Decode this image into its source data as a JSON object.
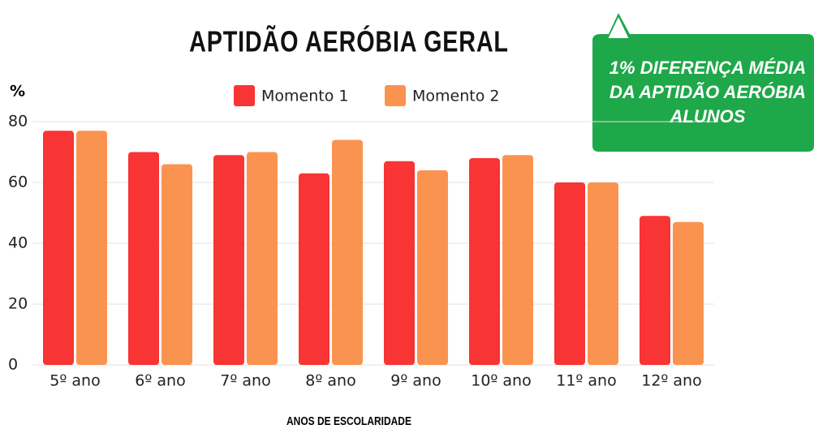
{
  "chart_data": {
    "type": "bar",
    "title": "APTIDÃO AERÓBIA GERAL",
    "y_label": "%",
    "x_label": "ANOS DE ESCOLARIDADE",
    "annotation": [
      "1% DIFERENÇA MÉDIA",
      "DA APTIDÃO AERÓBIA",
      "ALUNOS"
    ],
    "categories": [
      "5º ano",
      "6º ano",
      "7º ano",
      "8º ano",
      "9º ano",
      "10º ano",
      "11º ano",
      "12º ano"
    ],
    "series": [
      {
        "name": "Momento 1",
        "color": "#f83434",
        "values": [
          77,
          70,
          69,
          63,
          67,
          68,
          60,
          49
        ]
      },
      {
        "name": "Momento 2",
        "color": "#fb9350",
        "values": [
          77,
          66,
          70,
          74,
          64,
          69,
          60,
          47
        ]
      }
    ],
    "ylim": [
      0,
      80
    ],
    "yticks": [
      0,
      20,
      40,
      60,
      80
    ],
    "grid": true
  }
}
